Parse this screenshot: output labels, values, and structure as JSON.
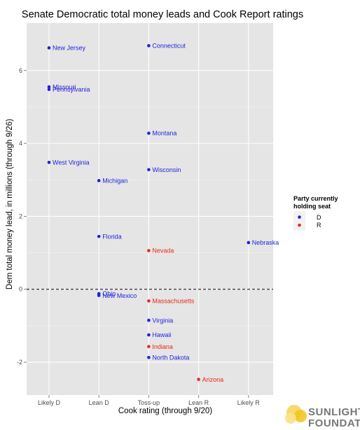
{
  "chart_data": {
    "type": "scatter",
    "title": "Senate Democratic total money leads and Cook Report ratings",
    "xlabel": "Cook rating (through 9/20)",
    "ylabel": "Dem total money lead, in millions (through 9/26)",
    "categories": [
      "Likely D",
      "Lean D",
      "Toss-up",
      "Lean R",
      "Likely R"
    ],
    "ylim": [
      -2.9,
      7.3
    ],
    "yticks": [
      -2,
      0,
      2,
      4,
      6
    ],
    "grid": true,
    "reference_line": 0,
    "legend": {
      "title_line1": "Party currently",
      "title_line2": "holding seat",
      "placement": "right",
      "entries": [
        {
          "label": "D",
          "color": "#1f1fe0"
        },
        {
          "label": "R",
          "color": "#e8291c"
        }
      ]
    },
    "points": [
      {
        "label": "New Jersey",
        "x": "Likely D",
        "y": 6.62,
        "party": "D"
      },
      {
        "label": "Missouri",
        "x": "Likely D",
        "y": 5.55,
        "party": "D"
      },
      {
        "label": "Pennsylvania",
        "x": "Likely D",
        "y": 5.48,
        "party": "D"
      },
      {
        "label": "West Virginia",
        "x": "Likely D",
        "y": 3.48,
        "party": "D"
      },
      {
        "label": "Michigan",
        "x": "Lean D",
        "y": 2.98,
        "party": "D"
      },
      {
        "label": "Florida",
        "x": "Lean D",
        "y": 1.45,
        "party": "D"
      },
      {
        "label": "Ohio",
        "x": "Lean D",
        "y": -0.12,
        "party": "D"
      },
      {
        "label": "New Mexico",
        "x": "Lean D",
        "y": -0.17,
        "party": "D"
      },
      {
        "label": "Connecticut",
        "x": "Toss-up",
        "y": 6.68,
        "party": "D"
      },
      {
        "label": "Montana",
        "x": "Toss-up",
        "y": 4.28,
        "party": "D"
      },
      {
        "label": "Wisconsin",
        "x": "Toss-up",
        "y": 3.28,
        "party": "D"
      },
      {
        "label": "Nevada",
        "x": "Toss-up",
        "y": 1.06,
        "party": "R"
      },
      {
        "label": "Massachusetts",
        "x": "Toss-up",
        "y": -0.32,
        "party": "R"
      },
      {
        "label": "Virginia",
        "x": "Toss-up",
        "y": -0.85,
        "party": "D"
      },
      {
        "label": "Hawaii",
        "x": "Toss-up",
        "y": -1.25,
        "party": "D"
      },
      {
        "label": "Indiana",
        "x": "Toss-up",
        "y": -1.57,
        "party": "R"
      },
      {
        "label": "North Dakota",
        "x": "Toss-up",
        "y": -1.87,
        "party": "D"
      },
      {
        "label": "Arizona",
        "x": "Lean R",
        "y": -2.47,
        "party": "R"
      },
      {
        "label": "Nebraska",
        "x": "Likely R",
        "y": 1.28,
        "party": "D"
      }
    ]
  },
  "logo": {
    "line1": "SUNLIGHT",
    "line2": "FOUNDATION",
    "icon": "sunlight-logo-icon"
  }
}
